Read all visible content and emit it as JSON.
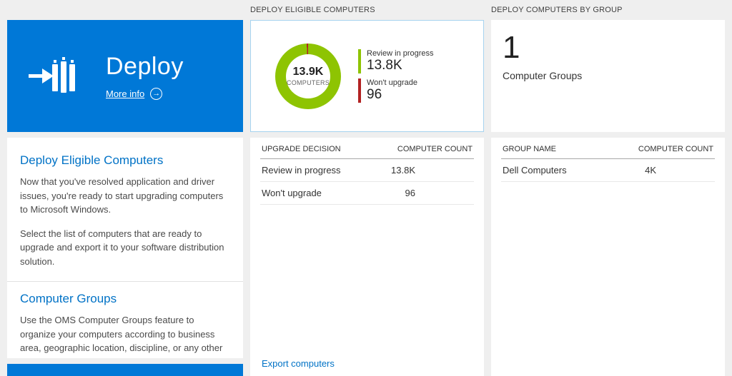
{
  "colors": {
    "accent": "#0078d7",
    "heading_blue": "#0072c6",
    "bar_blue": "#0078d7"
  },
  "left": {
    "tile": {
      "title": "Deploy",
      "more_info_label": "More info"
    },
    "sections": [
      {
        "heading": "Deploy Eligible Computers",
        "paragraphs": [
          "Now that you've resolved application and driver issues, you're ready to start upgrading computers to Microsoft Windows.",
          "Select the list of computers that are ready to upgrade and export it to your software distribution solution."
        ]
      },
      {
        "heading": "Computer Groups",
        "paragraphs": [
          "Use the OMS Computer Groups feature to organize your computers according to business area, geographic location, discipline, or any other factors you find relevant."
        ]
      }
    ]
  },
  "middle": {
    "header": "DEPLOY ELIGIBLE COMPUTERS",
    "donut": {
      "center_value": "13.9K",
      "center_label": "COMPUTERS",
      "segments": [
        {
          "label": "Review in progress",
          "display": "13.8K",
          "count": 13800,
          "color": "#8ec402"
        },
        {
          "label": "Won't upgrade",
          "display": "96",
          "count": 96,
          "color": "#b22222"
        }
      ]
    },
    "table": {
      "columns": [
        "UPGRADE DECISION",
        "COMPUTER COUNT"
      ],
      "rows": [
        {
          "label": "Review in progress",
          "value": "13.8K",
          "bar_pct": 100
        },
        {
          "label": "Won't upgrade",
          "value": "96",
          "bar_pct": 2
        }
      ]
    },
    "export_link": "Export computers"
  },
  "right": {
    "header": "DEPLOY COMPUTERS BY GROUP",
    "summary": {
      "value": "1",
      "label": "Computer Groups"
    },
    "table": {
      "columns": [
        "GROUP NAME",
        "COMPUTER COUNT"
      ],
      "rows": [
        {
          "label": "Dell Computers",
          "value": "4K",
          "bar_pct": 100
        }
      ]
    }
  }
}
